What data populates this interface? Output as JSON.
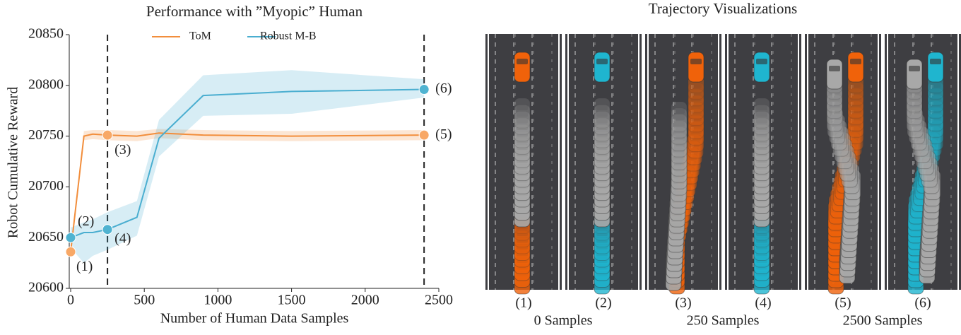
{
  "chart_data": {
    "type": "line",
    "title": "Performance with ”Myopic” Human",
    "x_label": "Number of Human Data Samples",
    "y_label": "Robot Cumulative Reward",
    "x": [
      0,
      90,
      150,
      250,
      450,
      600,
      900,
      1500,
      2400
    ],
    "series": [
      {
        "name": "ToM",
        "color": "#f28e3c",
        "values": [
          20636,
          20750,
          20752,
          20751,
          20750,
          20753,
          20751,
          20750,
          20751
        ],
        "lower": [
          20632,
          20746,
          20747,
          20746,
          20745,
          20748,
          20746,
          20745,
          20746
        ],
        "upper": [
          20642,
          20755,
          20756,
          20756,
          20755,
          20757,
          20756,
          20755,
          20756
        ]
      },
      {
        "name": "Robust M-B",
        "color": "#4aaed0",
        "values": [
          20650,
          20655,
          20655,
          20658,
          20670,
          20748,
          20790,
          20794,
          20796
        ],
        "lower": [
          20640,
          20625,
          20632,
          20638,
          20652,
          20730,
          20770,
          20772,
          20788
        ],
        "upper": [
          20660,
          20665,
          20668,
          20675,
          20686,
          20766,
          20810,
          20815,
          20806
        ]
      }
    ],
    "annotations": [
      {
        "text": "(1)",
        "x": 0,
        "y": 20636,
        "color": "#f8a866"
      },
      {
        "text": "(2)",
        "x": 0,
        "y": 20650,
        "color": "#4fb3d1"
      },
      {
        "text": "(3)",
        "x": 250,
        "y": 20751,
        "color": "#f8a866"
      },
      {
        "text": "(4)",
        "x": 250,
        "y": 20658,
        "color": "#4fb3d1"
      },
      {
        "text": "(5)",
        "x": 2400,
        "y": 20751,
        "color": "#f8a866"
      },
      {
        "text": "(6)",
        "x": 2400,
        "y": 20796,
        "color": "#4fb3d1"
      }
    ],
    "vlines": [
      250,
      2400
    ],
    "xlim": [
      0,
      2500
    ],
    "xticks": [
      0,
      500,
      1000,
      1500,
      2000,
      2500
    ],
    "ylim": [
      20600,
      20850
    ],
    "yticks": [
      20600,
      20650,
      20700,
      20750,
      20800,
      20850
    ],
    "grid": false,
    "legend": "upper center"
  },
  "visualization": {
    "title": "Trajectory Visualizations",
    "panels": [
      "(1)",
      "(2)",
      "(3)",
      "(4)",
      "(5)",
      "(6)"
    ],
    "groups": [
      "0 Samples",
      "250 Samples",
      "2500 Samples"
    ]
  }
}
